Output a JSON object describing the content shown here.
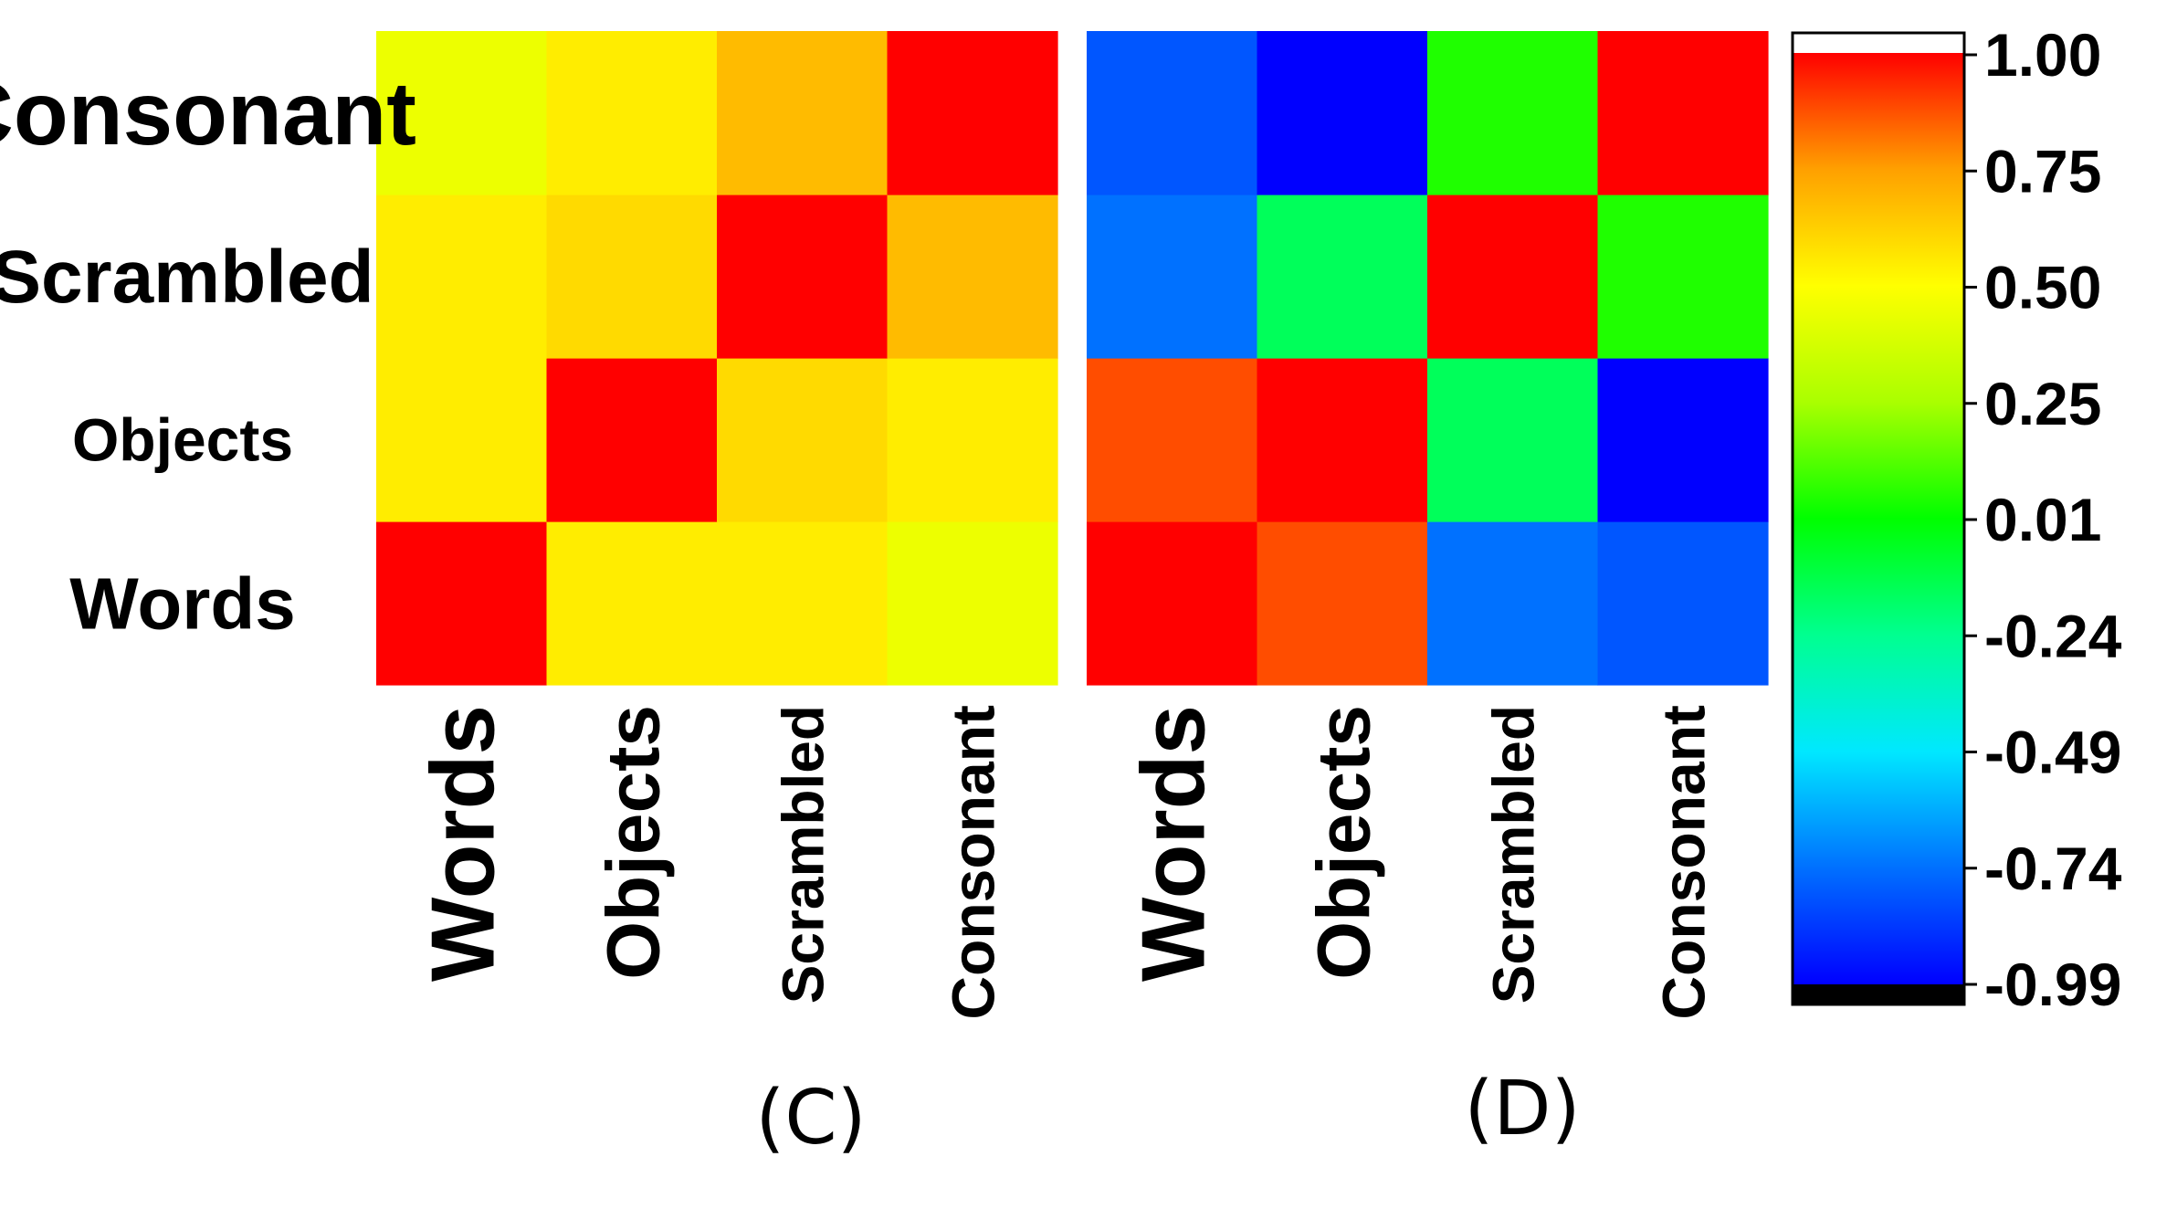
{
  "chart_data": [
    {
      "type": "heatmap",
      "panel_label": "(C)",
      "x_categories": [
        "Words",
        "Objects",
        "Scrambled",
        "Consonant"
      ],
      "y_categories": [
        "Words",
        "Objects",
        "Scrambled",
        "Consonant"
      ],
      "values": [
        [
          1.0,
          0.55,
          0.55,
          0.45
        ],
        [
          0.55,
          1.0,
          0.6,
          0.55
        ],
        [
          0.55,
          0.6,
          1.0,
          0.68
        ],
        [
          0.45,
          0.55,
          0.68,
          1.0
        ]
      ],
      "zlim": [
        -0.99,
        1.0
      ]
    },
    {
      "type": "heatmap",
      "panel_label": "(D)",
      "x_categories": [
        "Words",
        "Objects",
        "Scrambled",
        "Consonant"
      ],
      "y_categories": [
        "Words",
        "Objects",
        "Scrambled",
        "Consonant"
      ],
      "values": [
        [
          1.0,
          0.88,
          -0.74,
          -0.8
        ],
        [
          0.88,
          1.0,
          -0.15,
          -0.99
        ],
        [
          -0.74,
          -0.15,
          1.0,
          0.05
        ],
        [
          -0.8,
          -0.99,
          0.05,
          1.0
        ]
      ],
      "zlim": [
        -0.99,
        1.0
      ]
    }
  ],
  "colorbar": {
    "ticks": [
      "1.00",
      "0.75",
      "0.50",
      "0.25",
      "0.01",
      "-0.24",
      "-0.49",
      "-0.74",
      "-0.99"
    ],
    "colors": [
      "#0000ff",
      "#0070ff",
      "#00e8ff",
      "#00ff90",
      "#00ff00",
      "#aaff00",
      "#ffff00",
      "#ffa000",
      "#ff0000"
    ]
  }
}
